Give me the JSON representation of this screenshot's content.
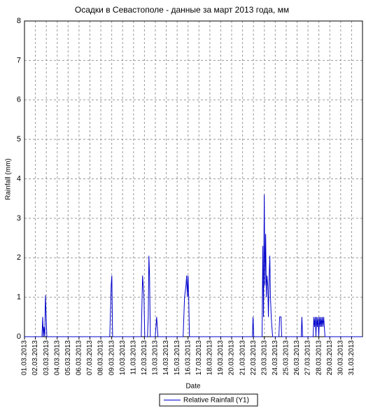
{
  "chart_data": {
    "type": "line",
    "title": "Осадки в Севастополе - данные за март 2013 года, мм",
    "x_label": "Date",
    "y_label": "Rainfall (mm)",
    "x": [
      1.0,
      2.6,
      2.67,
      2.73,
      2.79,
      2.86,
      2.92,
      2.99,
      3.05,
      8.82,
      8.95,
      9.01,
      9.08,
      11.71,
      11.83,
      11.96,
      12.03,
      12.28,
      12.35,
      12.41,
      12.47,
      12.54,
      12.99,
      13.12,
      13.18,
      13.24,
      15.55,
      15.68,
      15.81,
      15.87,
      15.94,
      16.0,
      16.06,
      16.13,
      21.9,
      21.96,
      22.03,
      22.79,
      22.86,
      22.92,
      22.99,
      23.05,
      23.12,
      23.18,
      23.24,
      23.31,
      23.37,
      23.44,
      23.5,
      23.56,
      23.63,
      23.69,
      23.76,
      24.33,
      24.4,
      24.53,
      24.59,
      26.38,
      26.44,
      26.51,
      27.47,
      27.54,
      27.6,
      27.67,
      27.73,
      27.79,
      27.86,
      27.92,
      27.99,
      28.05,
      28.12,
      28.18,
      28.24,
      28.31,
      28.37,
      28.44,
      28.5,
      28.56,
      31.96
    ],
    "series": [
      {
        "name": "Relative Rainfall (Y1)",
        "color": "#0000cc",
        "values": [
          0,
          0,
          0.5,
          0,
          0.25,
          0,
          1.05,
          0.5,
          0,
          0,
          1.3,
          1.55,
          0,
          0,
          1.55,
          1.0,
          0,
          0,
          0.5,
          2.05,
          1.55,
          0,
          0,
          0.5,
          0.25,
          0,
          0,
          1.0,
          1.3,
          1.55,
          1.0,
          1.55,
          1.0,
          0,
          0,
          0.5,
          0,
          0,
          2.3,
          0.5,
          3.6,
          1.3,
          2.6,
          1.0,
          1.55,
          1.3,
          0.5,
          1.55,
          2.05,
          1.0,
          0.5,
          0.25,
          0,
          0,
          0.5,
          0.5,
          0,
          0,
          0.5,
          0,
          0,
          0.5,
          0.25,
          0.5,
          0,
          0.5,
          0.25,
          0.5,
          0,
          0.5,
          0.25,
          0.5,
          0.25,
          0.5,
          0.25,
          0.5,
          0.25,
          0,
          0
        ]
      }
    ],
    "xlim": [
      1,
      32
    ],
    "ylim": [
      0,
      8
    ],
    "xticks": [
      {
        "value": 1,
        "label": "01.03.2013"
      },
      {
        "value": 2,
        "label": "02.03.2013"
      },
      {
        "value": 3,
        "label": "03.03.2013"
      },
      {
        "value": 4,
        "label": "04.03.2013"
      },
      {
        "value": 5,
        "label": "05.03.2013"
      },
      {
        "value": 6,
        "label": "06.03.2013"
      },
      {
        "value": 7,
        "label": "07.03.2013"
      },
      {
        "value": 8,
        "label": "08.03.2013"
      },
      {
        "value": 9,
        "label": "09.03.2013"
      },
      {
        "value": 10,
        "label": "10.03.2013"
      },
      {
        "value": 11,
        "label": "11.03.2013"
      },
      {
        "value": 12,
        "label": "12.03.2013"
      },
      {
        "value": 13,
        "label": "13.03.2013"
      },
      {
        "value": 14,
        "label": "14.03.2013"
      },
      {
        "value": 15,
        "label": "15.03.2013"
      },
      {
        "value": 16,
        "label": "16.03.2013"
      },
      {
        "value": 17,
        "label": "17.03.2013"
      },
      {
        "value": 18,
        "label": "18.03.2013"
      },
      {
        "value": 19,
        "label": "19.03.2013"
      },
      {
        "value": 20,
        "label": "20.03.2013"
      },
      {
        "value": 21,
        "label": "21.03.2013"
      },
      {
        "value": 22,
        "label": "22.03.2013"
      },
      {
        "value": 23,
        "label": "23.03.2013"
      },
      {
        "value": 24,
        "label": "24.03.2013"
      },
      {
        "value": 25,
        "label": "25.03.2013"
      },
      {
        "value": 26,
        "label": "26.03.2013"
      },
      {
        "value": 27,
        "label": "27.03.2013"
      },
      {
        "value": 28,
        "label": "28.03.2013"
      },
      {
        "value": 29,
        "label": "29.03.2013"
      },
      {
        "value": 30,
        "label": "30.03.2013"
      },
      {
        "value": 31,
        "label": "31.03.2013"
      }
    ],
    "yticks": [
      0,
      1,
      2,
      3,
      4,
      5,
      6,
      7,
      8
    ],
    "grid": true,
    "legend": "bottom"
  }
}
